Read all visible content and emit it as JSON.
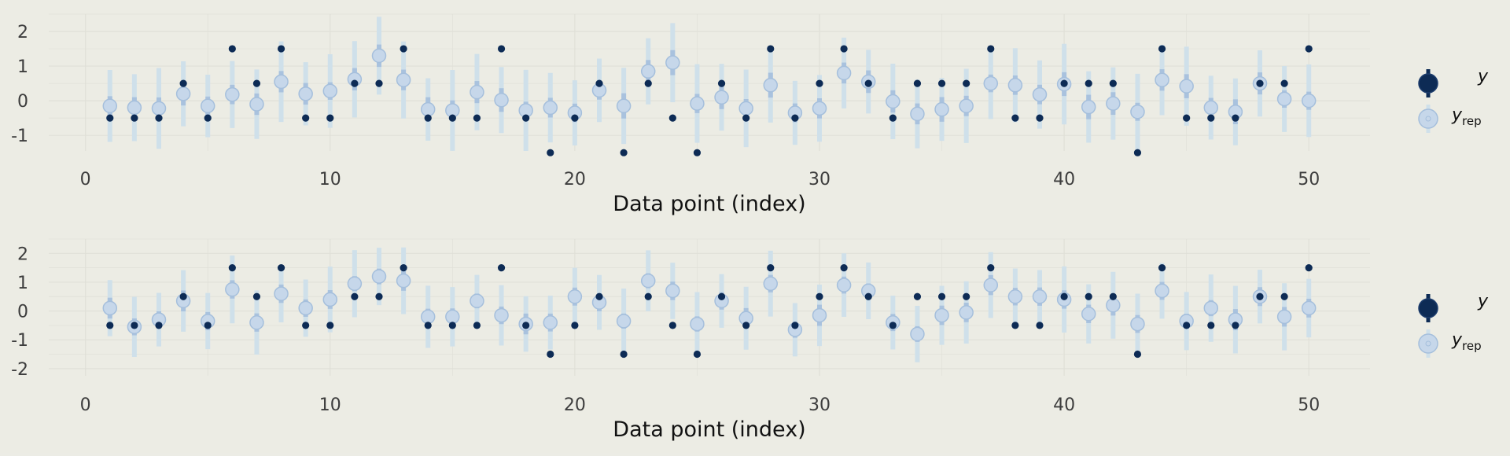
{
  "colors": {
    "background": "#ecece4",
    "grid": "#e0e0d8",
    "observed": "#0d2b55",
    "rep_point": "#c6d7ea",
    "rep_point_edge": "#a5bfdc",
    "rep_inner": "#a9c2de",
    "rep_outer": "#cfe0ea",
    "tick_text": "#3d3d3d",
    "axis_title": "#111111"
  },
  "chart_data": [
    {
      "type": "scatter",
      "xlabel": "Data point (index)",
      "ylabel": "",
      "xlim": [
        -1.5,
        52.5
      ],
      "ylim": [
        -1.45,
        2.5
      ],
      "xticks": [
        0,
        10,
        20,
        30,
        40,
        50
      ],
      "yticks": [
        -1,
        0,
        1,
        2
      ],
      "legend": {
        "position": "right",
        "entries": [
          "y",
          "y_rep"
        ]
      },
      "x": [
        1,
        2,
        3,
        4,
        5,
        6,
        7,
        8,
        9,
        10,
        11,
        12,
        13,
        14,
        15,
        16,
        17,
        18,
        19,
        20,
        21,
        22,
        23,
        24,
        25,
        26,
        27,
        28,
        29,
        30,
        31,
        32,
        33,
        34,
        35,
        36,
        37,
        38,
        39,
        40,
        41,
        42,
        43,
        44,
        45,
        46,
        47,
        48,
        49,
        50
      ],
      "y": [
        -0.5,
        -0.5,
        -0.5,
        0.5,
        -0.5,
        1.5,
        0.5,
        1.5,
        -0.5,
        -0.5,
        0.5,
        0.5,
        1.5,
        -0.5,
        -0.5,
        -0.5,
        1.5,
        -0.5,
        -1.5,
        -0.5,
        0.5,
        -1.5,
        0.5,
        -0.5,
        -1.5,
        0.5,
        -0.5,
        1.5,
        -0.5,
        0.5,
        1.5,
        0.5,
        -0.5,
        0.5,
        0.5,
        0.5,
        1.5,
        -0.5,
        -0.5,
        0.5,
        0.5,
        0.5,
        -1.5,
        1.5,
        -0.5,
        -0.5,
        -0.5,
        0.5,
        0.5,
        1.5
      ],
      "y_rep": [
        -0.15,
        -0.2,
        -0.22,
        0.2,
        -0.15,
        0.18,
        -0.1,
        0.55,
        0.2,
        0.28,
        0.62,
        1.3,
        0.6,
        -0.25,
        -0.28,
        0.25,
        0.02,
        -0.28,
        -0.2,
        -0.35,
        0.3,
        -0.15,
        0.85,
        1.1,
        -0.08,
        0.1,
        -0.22,
        0.45,
        -0.35,
        -0.22,
        0.8,
        0.55,
        -0.02,
        -0.38,
        -0.25,
        -0.15,
        0.5,
        0.45,
        0.18,
        0.48,
        -0.18,
        -0.08,
        -0.32,
        0.6,
        0.42,
        -0.2,
        -0.32,
        0.5,
        0.05,
        0.0
      ]
    },
    {
      "type": "scatter",
      "xlabel": "Data point (index)",
      "ylabel": "",
      "xlim": [
        -1.5,
        52.5
      ],
      "ylim": [
        -2.25,
        2.5
      ],
      "xticks": [
        0,
        10,
        20,
        30,
        40,
        50
      ],
      "yticks": [
        -2,
        -1,
        0,
        1,
        2
      ],
      "legend": {
        "position": "right",
        "entries": [
          "y",
          "y_rep"
        ]
      },
      "x": [
        1,
        2,
        3,
        4,
        5,
        6,
        7,
        8,
        9,
        10,
        11,
        12,
        13,
        14,
        15,
        16,
        17,
        18,
        19,
        20,
        21,
        22,
        23,
        24,
        25,
        26,
        27,
        28,
        29,
        30,
        31,
        32,
        33,
        34,
        35,
        36,
        37,
        38,
        39,
        40,
        41,
        42,
        43,
        44,
        45,
        46,
        47,
        48,
        49,
        50
      ],
      "y": [
        -0.5,
        -0.5,
        -0.5,
        0.5,
        -0.5,
        1.5,
        0.5,
        1.5,
        -0.5,
        -0.5,
        0.5,
        0.5,
        1.5,
        -0.5,
        -0.5,
        -0.5,
        1.5,
        -0.5,
        -1.5,
        -0.5,
        0.5,
        -1.5,
        0.5,
        -0.5,
        -1.5,
        0.5,
        -0.5,
        1.5,
        -0.5,
        0.5,
        1.5,
        0.5,
        -0.5,
        0.5,
        0.5,
        0.5,
        1.5,
        -0.5,
        -0.5,
        0.5,
        0.5,
        0.5,
        -1.5,
        1.5,
        -0.5,
        -0.5,
        -0.5,
        0.5,
        0.5,
        1.5
      ],
      "y_rep": [
        0.1,
        -0.55,
        -0.3,
        0.35,
        -0.35,
        0.75,
        -0.4,
        0.6,
        0.1,
        0.4,
        0.95,
        1.2,
        1.05,
        -0.2,
        -0.2,
        0.35,
        -0.15,
        -0.45,
        -0.4,
        0.5,
        0.3,
        -0.35,
        1.05,
        0.7,
        -0.45,
        0.35,
        -0.25,
        0.95,
        -0.65,
        -0.15,
        0.9,
        0.7,
        -0.4,
        -0.8,
        -0.15,
        -0.05,
        0.9,
        0.5,
        0.5,
        0.4,
        -0.1,
        0.2,
        -0.45,
        0.7,
        -0.35,
        0.1,
        -0.3,
        0.5,
        -0.2,
        0.1
      ]
    }
  ],
  "legend": {
    "y_label": "y",
    "yrep_base": "y",
    "yrep_sub": "rep"
  }
}
